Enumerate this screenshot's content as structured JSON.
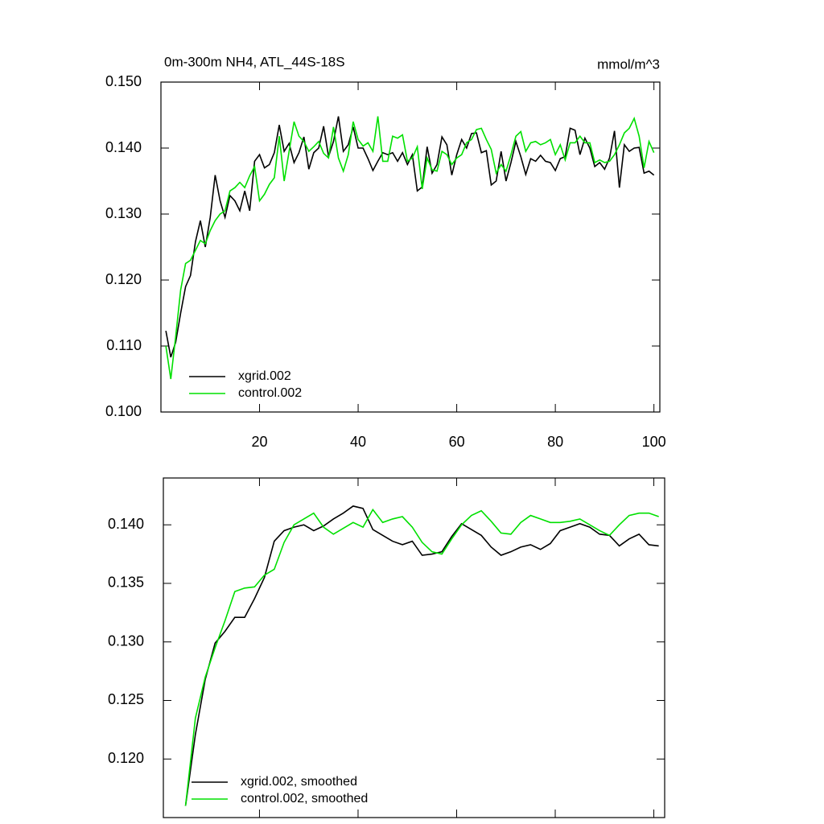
{
  "chart_data": [
    {
      "type": "line",
      "title": "0m-300m NH4, ATL_44S-18S",
      "unit_label": "mmol/m^3",
      "x": [
        1,
        2,
        3,
        4,
        5,
        6,
        7,
        8,
        9,
        10,
        11,
        12,
        13,
        14,
        15,
        16,
        17,
        18,
        19,
        20,
        21,
        22,
        23,
        24,
        25,
        26,
        27,
        28,
        29,
        30,
        31,
        32,
        33,
        34,
        35,
        36,
        37,
        38,
        39,
        40,
        41,
        42,
        43,
        44,
        45,
        46,
        47,
        48,
        49,
        50,
        51,
        52,
        53,
        54,
        55,
        56,
        57,
        58,
        59,
        60,
        61,
        62,
        63,
        64,
        65,
        66,
        67,
        68,
        69,
        70,
        71,
        72,
        73,
        74,
        75,
        76,
        77,
        78,
        79,
        80,
        81,
        82,
        83,
        84,
        85,
        86,
        87,
        88,
        89,
        90,
        91,
        92,
        93,
        94,
        95,
        96,
        97,
        98,
        99,
        100
      ],
      "series": [
        {
          "name": "xgrid.002",
          "color": "#000000",
          "values": [
            0.1123,
            0.1083,
            0.1106,
            0.115,
            0.119,
            0.1207,
            0.1258,
            0.129,
            0.125,
            0.1295,
            0.1359,
            0.132,
            0.1295,
            0.1328,
            0.132,
            0.1305,
            0.1335,
            0.1305,
            0.138,
            0.139,
            0.137,
            0.1375,
            0.1393,
            0.1435,
            0.1395,
            0.1407,
            0.1378,
            0.1393,
            0.1417,
            0.1368,
            0.1393,
            0.14,
            0.1433,
            0.1387,
            0.141,
            0.1448,
            0.1395,
            0.1405,
            0.1432,
            0.14,
            0.14,
            0.1384,
            0.1366,
            0.138,
            0.1393,
            0.139,
            0.1393,
            0.138,
            0.1393,
            0.1375,
            0.139,
            0.1335,
            0.1341,
            0.1402,
            0.1362,
            0.1375,
            0.1417,
            0.1405,
            0.1359,
            0.139,
            0.1413,
            0.14,
            0.1422,
            0.1423,
            0.1393,
            0.1396,
            0.1344,
            0.135,
            0.1395,
            0.135,
            0.1378,
            0.141,
            0.1387,
            0.136,
            0.1384,
            0.138,
            0.1389,
            0.138,
            0.1378,
            0.1366,
            0.1384,
            0.1387,
            0.143,
            0.1427,
            0.139,
            0.1415,
            0.14,
            0.1372,
            0.1378,
            0.1368,
            0.1385,
            0.1426,
            0.134,
            0.1405,
            0.1395,
            0.14,
            0.1401,
            0.1362,
            0.1365,
            0.1359
          ]
        },
        {
          "name": "control.002",
          "color": "#00e000",
          "values": [
            0.11,
            0.105,
            0.1115,
            0.1185,
            0.1225,
            0.123,
            0.1245,
            0.126,
            0.1255,
            0.1275,
            0.129,
            0.13,
            0.1305,
            0.1335,
            0.134,
            0.1348,
            0.134,
            0.1358,
            0.1372,
            0.132,
            0.133,
            0.1345,
            0.1355,
            0.1418,
            0.135,
            0.1395,
            0.144,
            0.1418,
            0.141,
            0.1395,
            0.1402,
            0.141,
            0.1392,
            0.1385,
            0.1432,
            0.1385,
            0.1365,
            0.139,
            0.144,
            0.1413,
            0.1403,
            0.1408,
            0.1395,
            0.1448,
            0.138,
            0.138,
            0.1418,
            0.1415,
            0.142,
            0.138,
            0.1385,
            0.1402,
            0.1338,
            0.1385,
            0.1367,
            0.1365,
            0.1395,
            0.139,
            0.1375,
            0.1385,
            0.139,
            0.1408,
            0.1413,
            0.1428,
            0.143,
            0.1413,
            0.1398,
            0.1362,
            0.1375,
            0.1365,
            0.139,
            0.1418,
            0.1425,
            0.1395,
            0.1408,
            0.141,
            0.1405,
            0.1408,
            0.1413,
            0.139,
            0.1405,
            0.1382,
            0.1408,
            0.1408,
            0.1418,
            0.1408,
            0.1408,
            0.1378,
            0.1382,
            0.1378,
            0.138,
            0.139,
            0.1405,
            0.1423,
            0.143,
            0.1445,
            0.1418,
            0.137,
            0.141,
            0.1393
          ]
        }
      ],
      "xlim": [
        0,
        101.2
      ],
      "xticks": [
        20,
        40,
        60,
        80,
        100
      ],
      "ylim": [
        0.1,
        0.15
      ],
      "yticks": [
        {
          "value": 0.1,
          "label": "0.100"
        },
        {
          "value": 0.11,
          "label": "0.110"
        },
        {
          "value": 0.12,
          "label": "0.120"
        },
        {
          "value": 0.13,
          "label": "0.130"
        },
        {
          "value": 0.14,
          "label": "0.140"
        },
        {
          "value": 0.15,
          "label": "0.150"
        }
      ],
      "legend": "lower left"
    },
    {
      "type": "line",
      "x": [
        5,
        7,
        9,
        11,
        13,
        15,
        17,
        19,
        21,
        23,
        25,
        27,
        29,
        31,
        33,
        35,
        37,
        39,
        41,
        43,
        45,
        47,
        49,
        51,
        53,
        55,
        57,
        59,
        61,
        63,
        65,
        67,
        69,
        71,
        73,
        75,
        77,
        79,
        81,
        83,
        85,
        87,
        89,
        91,
        93,
        95,
        97,
        99,
        101
      ],
      "series": [
        {
          "name": "xgrid.002, smoothed",
          "color": "#000000",
          "values": [
            0.116,
            0.1221,
            0.1268,
            0.1299,
            0.1309,
            0.1321,
            0.1321,
            0.1337,
            0.1355,
            0.1386,
            0.1395,
            0.1398,
            0.14,
            0.1395,
            0.1399,
            0.1405,
            0.141,
            0.1416,
            0.1414,
            0.1396,
            0.1391,
            0.1386,
            0.1383,
            0.1386,
            0.1374,
            0.1375,
            0.1377,
            0.139,
            0.1401,
            0.1396,
            0.1391,
            0.1381,
            0.1374,
            0.1377,
            0.1381,
            0.1383,
            0.1379,
            0.1384,
            0.1395,
            0.1398,
            0.1401,
            0.1398,
            0.1392,
            0.1391,
            0.1382,
            0.1388,
            0.1392,
            0.1383,
            0.1382
          ]
        },
        {
          "name": "control.002, smoothed",
          "color": "#00e000",
          "values": [
            0.116,
            0.1235,
            0.127,
            0.1295,
            0.1318,
            0.1343,
            0.1346,
            0.1347,
            0.1357,
            0.1362,
            0.1385,
            0.14,
            0.1405,
            0.141,
            0.1398,
            0.1392,
            0.1397,
            0.1402,
            0.1398,
            0.1413,
            0.1402,
            0.1405,
            0.1407,
            0.1398,
            0.1385,
            0.1377,
            0.1375,
            0.1388,
            0.14,
            0.1408,
            0.1412,
            0.1403,
            0.1393,
            0.1392,
            0.1402,
            0.1408,
            0.1405,
            0.1402,
            0.1402,
            0.1403,
            0.1405,
            0.14,
            0.1395,
            0.1391,
            0.14,
            0.1408,
            0.141,
            0.141,
            0.1407
          ]
        }
      ],
      "xlim": [
        0.5,
        102.2
      ],
      "ylim": [
        0.115,
        0.144
      ],
      "yticks": [
        {
          "value": 0.12,
          "label": "0.120"
        },
        0.125,
        {
          "value": 0.13,
          "label": "0.130"
        },
        0.135,
        {
          "value": 0.14,
          "label": "0.140"
        }
      ],
      "legend": "lower left"
    }
  ]
}
